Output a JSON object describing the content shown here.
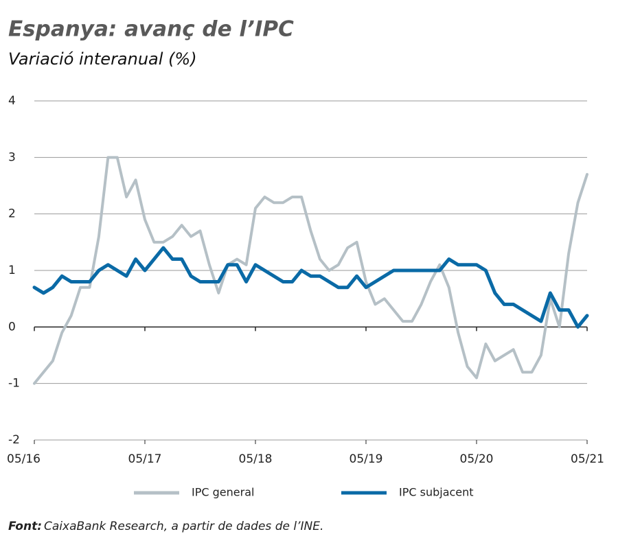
{
  "chart_data": {
    "type": "line",
    "title": "Espanya: avanç de l’IPC",
    "subtitle": "Variació interanual (%)",
    "source_label": "Font:",
    "source_text": "CaixaBank Research, a partir de dades de l’INE.",
    "categories": [
      "05/16",
      null,
      null,
      null,
      null,
      null,
      null,
      null,
      null,
      null,
      null,
      null,
      "05/17",
      null,
      null,
      null,
      null,
      null,
      null,
      null,
      null,
      null,
      null,
      null,
      "05/18",
      null,
      null,
      null,
      null,
      null,
      null,
      null,
      null,
      null,
      null,
      null,
      "05/19",
      null,
      null,
      null,
      null,
      null,
      null,
      null,
      null,
      null,
      null,
      null,
      "05/20",
      null,
      null,
      null,
      null,
      null,
      null,
      null,
      null,
      null,
      null,
      null,
      "05/21"
    ],
    "series": [
      {
        "name": "IPC general",
        "color": "#b5c0c6",
        "values": [
          -1.0,
          -0.8,
          -0.6,
          -0.1,
          0.2,
          0.7,
          0.7,
          1.6,
          3.0,
          3.0,
          2.3,
          2.6,
          1.9,
          1.5,
          1.5,
          1.6,
          1.8,
          1.6,
          1.7,
          1.1,
          0.6,
          1.1,
          1.2,
          1.1,
          2.1,
          2.3,
          2.2,
          2.2,
          2.3,
          2.3,
          1.7,
          1.2,
          1.0,
          1.1,
          1.4,
          1.5,
          0.8,
          0.4,
          0.5,
          0.3,
          0.1,
          0.1,
          0.4,
          0.8,
          1.1,
          0.7,
          -0.1,
          -0.7,
          -0.9,
          -0.3,
          -0.6,
          -0.5,
          -0.4,
          -0.8,
          -0.8,
          -0.5,
          0.5,
          0.0,
          1.3,
          2.2,
          2.7
        ]
      },
      {
        "name": "IPC subjacent",
        "color": "#0a6aa6",
        "values": [
          0.7,
          0.6,
          0.7,
          0.9,
          0.8,
          0.8,
          0.8,
          1.0,
          1.1,
          1.0,
          0.9,
          1.2,
          1.0,
          1.2,
          1.4,
          1.2,
          1.2,
          0.9,
          0.8,
          0.8,
          0.8,
          1.1,
          1.1,
          0.8,
          1.1,
          1.0,
          0.9,
          0.8,
          0.8,
          1.0,
          0.9,
          0.9,
          0.8,
          0.7,
          0.7,
          0.9,
          0.7,
          0.8,
          0.9,
          1.0,
          1.0,
          1.0,
          1.0,
          1.0,
          1.0,
          1.2,
          1.1,
          1.1,
          1.1,
          1.0,
          0.6,
          0.4,
          0.4,
          0.3,
          0.2,
          0.1,
          0.6,
          0.3,
          0.3,
          0.0,
          0.2
        ]
      }
    ],
    "ylim": [
      -2,
      4
    ],
    "yticks": [
      -2,
      -1,
      0,
      1,
      2,
      3,
      4
    ],
    "grid": true
  }
}
